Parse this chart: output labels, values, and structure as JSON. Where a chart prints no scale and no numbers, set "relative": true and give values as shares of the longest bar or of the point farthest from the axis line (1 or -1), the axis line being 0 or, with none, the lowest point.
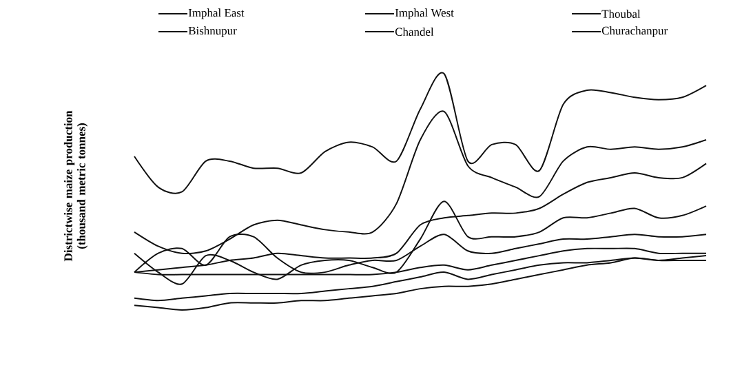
{
  "chart_data": {
    "type": "line",
    "relative": true,
    "ylabel": "Districtwise maize production (thousand metric tonnes)",
    "legend": "top",
    "categories": [
      null,
      null,
      null,
      null,
      null,
      null,
      null,
      null,
      null,
      null,
      null,
      null,
      null,
      null,
      null,
      null,
      null,
      null,
      null,
      null,
      null,
      null,
      null,
      null,
      null
    ],
    "series": [
      {
        "name": "Imphal East",
        "color": "#111111",
        "values": [
          0.02,
          0.01,
          0,
          0.01,
          0.03,
          0.03,
          0.03,
          0.04,
          0.04,
          0.05,
          0.06,
          0.07,
          0.09,
          0.1,
          0.1,
          0.11,
          0.13,
          0.15,
          0.17,
          0.19,
          0.2,
          0.22,
          0.21,
          0.21,
          0.21
        ]
      },
      {
        "name": "Imphal West",
        "color": "#111111",
        "values": [
          0.65,
          0.52,
          0.5,
          0.63,
          0.63,
          0.6,
          0.6,
          0.58,
          0.67,
          0.71,
          0.69,
          0.63,
          0.85,
          1.0,
          0.63,
          0.7,
          0.7,
          0.59,
          0.87,
          0.93,
          0.92,
          0.9,
          0.89,
          0.9,
          0.95
        ]
      },
      {
        "name": "Thoubal",
        "color": "#111111",
        "values": [
          0.33,
          0.27,
          0.24,
          0.25,
          0.3,
          0.36,
          0.38,
          0.36,
          0.34,
          0.33,
          0.33,
          0.45,
          0.72,
          0.84,
          0.61,
          0.56,
          0.52,
          0.48,
          0.63,
          0.69,
          0.68,
          0.69,
          0.68,
          0.69,
          0.72
        ]
      },
      {
        "name": "Bishnupur",
        "color": "#111111",
        "values": [
          0.16,
          0.17,
          0.18,
          0.19,
          0.21,
          0.22,
          0.24,
          0.23,
          0.22,
          0.22,
          0.22,
          0.24,
          0.36,
          0.39,
          0.4,
          0.41,
          0.41,
          0.43,
          0.49,
          0.54,
          0.56,
          0.58,
          0.56,
          0.56,
          0.62
        ]
      },
      {
        "name": "Chandel",
        "color": "#111111",
        "values": [
          0.05,
          0.04,
          0.05,
          0.06,
          0.07,
          0.07,
          0.07,
          0.07,
          0.08,
          0.09,
          0.1,
          0.12,
          0.14,
          0.16,
          0.13,
          0.15,
          0.17,
          0.19,
          0.2,
          0.2,
          0.21,
          0.22,
          0.21,
          0.22,
          0.23
        ]
      },
      {
        "name": "Churachanpur",
        "color": "#111111",
        "values": [
          0.24,
          0.16,
          0.11,
          0.23,
          0.21,
          0.16,
          0.13,
          0.19,
          0.21,
          0.21,
          0.18,
          0.16,
          0.3,
          0.46,
          0.31,
          0.31,
          0.31,
          0.33,
          0.39,
          0.39,
          0.41,
          0.43,
          0.39,
          0.4,
          0.44
        ]
      },
      {
        "color": "#111111",
        "values": [
          0.16,
          0.24,
          0.26,
          0.19,
          0.31,
          0.31,
          0.22,
          0.16,
          0.16,
          0.19,
          0.21,
          0.21,
          0.27,
          0.32,
          0.25,
          0.24,
          0.26,
          0.28,
          0.3,
          0.3,
          0.31,
          0.32,
          0.31,
          0.31,
          0.32
        ]
      },
      {
        "color": "#111111",
        "values": [
          0.16,
          0.15,
          0.15,
          0.15,
          0.15,
          0.15,
          0.15,
          0.15,
          0.15,
          0.15,
          0.15,
          0.16,
          0.18,
          0.19,
          0.17,
          0.19,
          0.21,
          0.23,
          0.25,
          0.26,
          0.26,
          0.26,
          0.24,
          0.24,
          0.24
        ]
      }
    ]
  }
}
